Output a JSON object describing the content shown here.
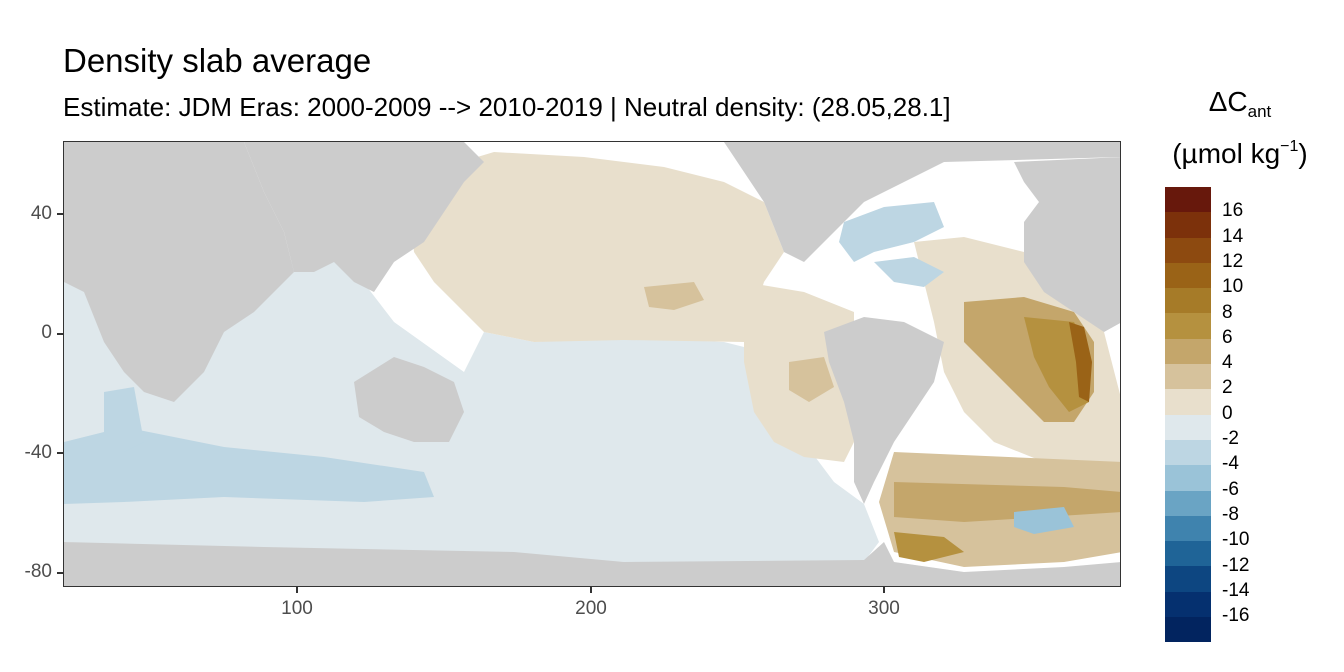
{
  "title": "Density slab average",
  "subtitle": "Estimate: JDM Eras: 2000-2009 --> 2010-2019 | Neutral density: (28.05,28.1]",
  "legend": {
    "symbol": "ΔC",
    "subscript": "ant",
    "unit_prefix": "(µmol kg",
    "unit_sup": "−1",
    "unit_suffix": ")",
    "labels": [
      "16",
      "14",
      "12",
      "10",
      "8",
      "6",
      "4",
      "2",
      "0",
      "-2",
      "-4",
      "-6",
      "-8",
      "-10",
      "-12",
      "-14",
      "-16"
    ],
    "colors": [
      "#67180c",
      "#7c310b",
      "#8d4a10",
      "#9a6317",
      "#a67b28",
      "#b5913f",
      "#c4a66b",
      "#d6c29c",
      "#e8dfcc",
      "#dfe8ec",
      "#bdd6e3",
      "#9ac3d8",
      "#6aa4c4",
      "#3f83ae",
      "#1f6497",
      "#0d4681",
      "#05306f",
      "#02245f"
    ]
  },
  "axes": {
    "x_ticks": [
      "100",
      "200",
      "300"
    ],
    "y_ticks": [
      "40",
      "0",
      "-40",
      "-80"
    ]
  },
  "map": {
    "land_color": "#cccccc",
    "missing_color": "#ffffff"
  }
}
